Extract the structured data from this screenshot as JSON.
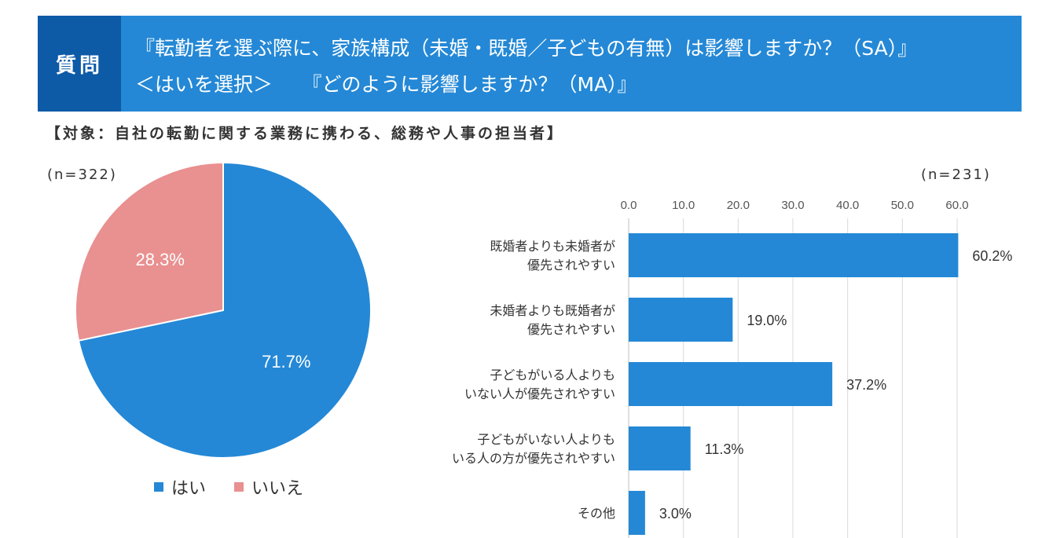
{
  "header": {
    "tag": "質問",
    "question_line1": "『転勤者を選ぶ際に、家族構成（未婚・既婚／子どもの有無）は影響しますか？（SA）』",
    "question_line2": "＜はいを選択＞　　『どのように影響しますか？（MA）』"
  },
  "subject": "【対象：自社の転勤に関する業務に携わる、総務や人事の担当者】",
  "chart_data": [
    {
      "type": "pie",
      "n_label": "(n=322)",
      "slices": [
        {
          "label": "はい",
          "value": 71.7,
          "display": "71.7%",
          "color": "#2488d6"
        },
        {
          "label": "いいえ",
          "value": 28.3,
          "display": "28.3%",
          "color": "#e99090"
        }
      ],
      "legend": [
        "はい",
        "いいえ"
      ],
      "legend_position": "bottom"
    },
    {
      "type": "bar",
      "orientation": "horizontal",
      "n_label": "(n=231)",
      "xlim": [
        0,
        60
      ],
      "ticks": [
        "0.0",
        "10.0",
        "20.0",
        "30.0",
        "40.0",
        "50.0",
        "60.0"
      ],
      "grid": true,
      "color": "#2488d6",
      "categories": [
        [
          "既婚者よりも未婚者が",
          "優先されやすい"
        ],
        [
          "未婚者よりも既婚者が",
          "優先されやすい"
        ],
        [
          "子どもがいる人よりも",
          "いない人が優先されやすい"
        ],
        [
          "子どもがいない人よりも",
          "いる人の方が優先されやすい"
        ],
        [
          "その他"
        ]
      ],
      "values": [
        60.2,
        19.0,
        37.2,
        11.3,
        3.0
      ],
      "value_labels": [
        "60.2%",
        "19.0%",
        "37.2%",
        "11.3%",
        "3.0%"
      ]
    }
  ]
}
